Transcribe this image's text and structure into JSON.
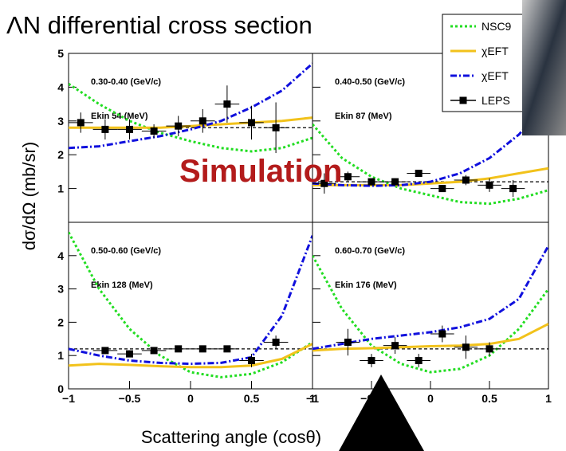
{
  "figure": {
    "title": "ΛN differential cross section",
    "y_label": "dσ/dΩ (mb/sr)",
    "x_label": "Scattering angle (cosθ)",
    "watermark": "Simulation"
  },
  "chart_data": [
    {
      "type": "line",
      "label": "0.30-0.40 (GeV/c)",
      "energy": "Ekin 54 (MeV)",
      "xlim": [
        -1,
        1
      ],
      "ylim": [
        0,
        5
      ],
      "yticks": [
        1,
        2,
        3,
        4,
        5
      ],
      "show_ytick_labels": true,
      "x": [
        -1,
        -0.75,
        -0.5,
        -0.25,
        0,
        0.25,
        0.5,
        0.75,
        1
      ],
      "flat_fit": 2.8,
      "series": [
        {
          "name": "NSC9",
          "color": "#22dd22",
          "style": "dotted",
          "values": [
            4.1,
            3.5,
            3.0,
            2.65,
            2.4,
            2.2,
            2.1,
            2.2,
            2.5
          ]
        },
        {
          "name": "χEFT",
          "color": "#f2c21b",
          "style": "solid",
          "values": [
            2.8,
            2.8,
            2.8,
            2.8,
            2.85,
            2.9,
            2.95,
            3.0,
            3.1
          ]
        },
        {
          "name": "χEFT",
          "color": "#1010dd",
          "style": "dashdot",
          "values": [
            2.2,
            2.25,
            2.4,
            2.55,
            2.75,
            3.0,
            3.4,
            3.9,
            4.7
          ]
        },
        {
          "name": "LEPS",
          "color": "#000000",
          "style": "markers",
          "x": [
            -0.9,
            -0.7,
            -0.5,
            -0.3,
            -0.1,
            0.1,
            0.3,
            0.5,
            0.7
          ],
          "x_error": 0.1,
          "values": [
            2.95,
            2.75,
            2.75,
            2.7,
            2.85,
            3.0,
            3.5,
            2.95,
            2.8
          ],
          "errors": [
            0.3,
            0.3,
            0.3,
            0.2,
            0.3,
            0.35,
            0.55,
            0.5,
            0.75
          ]
        }
      ]
    },
    {
      "type": "line",
      "label": "0.40-0.50 (GeV/c)",
      "energy": "Ekin 87 (MeV)",
      "xlim": [
        -1,
        1
      ],
      "ylim": [
        0,
        5
      ],
      "yticks": [
        1,
        2,
        3,
        4,
        5
      ],
      "show_ytick_labels": false,
      "x": [
        -1,
        -0.75,
        -0.5,
        -0.25,
        0,
        0.25,
        0.5,
        0.75,
        1
      ],
      "flat_fit": 1.2,
      "series": [
        {
          "color": "#22dd22",
          "style": "dotted",
          "values": [
            2.9,
            1.9,
            1.35,
            1.0,
            0.8,
            0.6,
            0.55,
            0.7,
            0.95
          ]
        },
        {
          "color": "#f2c21b",
          "style": "solid",
          "values": [
            1.1,
            1.1,
            1.1,
            1.1,
            1.15,
            1.2,
            1.3,
            1.45,
            1.6
          ]
        },
        {
          "color": "#1010dd",
          "style": "dashdot",
          "values": [
            1.15,
            1.1,
            1.08,
            1.1,
            1.2,
            1.45,
            1.9,
            2.6,
            3.6
          ]
        },
        {
          "color": "#000000",
          "style": "markers",
          "x": [
            -0.9,
            -0.7,
            -0.5,
            -0.3,
            -0.1,
            0.1,
            0.3,
            0.5,
            0.7
          ],
          "x_error": 0.1,
          "values": [
            1.15,
            1.35,
            1.2,
            1.2,
            1.45,
            1.0,
            1.25,
            1.1,
            1.0
          ],
          "errors": [
            0.3,
            0.15,
            0.1,
            0.1,
            0.1,
            0.1,
            0.15,
            0.2,
            0.25
          ]
        }
      ]
    },
    {
      "type": "line",
      "label": "0.50-0.60 (GeV/c)",
      "energy": "Ekin 128 (MeV)",
      "xlim": [
        -1,
        1
      ],
      "ylim": [
        0,
        5
      ],
      "yticks": [
        0,
        1,
        2,
        3,
        4
      ],
      "show_ytick_labels": true,
      "xticks": [
        {
          "value": -1,
          "label": "−1"
        },
        {
          "value": -0.5,
          "label": "−0.5"
        },
        0,
        0.5,
        1
      ],
      "x": [
        -1,
        -0.75,
        -0.5,
        -0.25,
        0,
        0.25,
        0.5,
        0.75,
        1
      ],
      "flat_fit": 1.2,
      "series": [
        {
          "color": "#22dd22",
          "style": "dotted",
          "values": [
            4.7,
            3.0,
            1.8,
            1.0,
            0.5,
            0.35,
            0.45,
            0.8,
            1.4
          ]
        },
        {
          "color": "#f2c21b",
          "style": "solid",
          "values": [
            0.7,
            0.75,
            0.72,
            0.68,
            0.65,
            0.65,
            0.7,
            0.9,
            1.35
          ]
        },
        {
          "color": "#1010dd",
          "style": "dashdot",
          "values": [
            1.2,
            1.0,
            0.85,
            0.78,
            0.75,
            0.78,
            0.95,
            2.2,
            4.6
          ]
        },
        {
          "color": "#000000",
          "style": "markers",
          "x": [
            -0.7,
            -0.5,
            -0.3,
            -0.1,
            0.1,
            0.3,
            0.5,
            0.7
          ],
          "x_error": 0.1,
          "values": [
            1.15,
            1.05,
            1.15,
            1.2,
            1.2,
            1.2,
            0.85,
            1.4
          ],
          "errors": [
            0.1,
            0.1,
            0.1,
            0.08,
            0.1,
            0.1,
            0.2,
            0.2
          ]
        }
      ]
    },
    {
      "type": "line",
      "label": "0.60-0.70 (GeV/c)",
      "energy": "Ekin 176 (MeV)",
      "xlim": [
        -1,
        1
      ],
      "ylim": [
        0,
        5
      ],
      "yticks": [
        0,
        1,
        2,
        3,
        4
      ],
      "show_ytick_labels": false,
      "xticks": [
        {
          "value": -1,
          "label": "−1"
        },
        {
          "value": -0.5,
          "label": "−0.5"
        },
        0,
        0.5,
        1
      ],
      "x": [
        -1,
        -0.75,
        -0.5,
        -0.25,
        0,
        0.25,
        0.5,
        0.75,
        1
      ],
      "flat_fit": 1.2,
      "series": [
        {
          "color": "#22dd22",
          "style": "dotted",
          "values": [
            4.0,
            2.4,
            1.3,
            0.75,
            0.5,
            0.6,
            1.0,
            1.8,
            3.0
          ]
        },
        {
          "color": "#f2c21b",
          "style": "solid",
          "values": [
            1.15,
            1.2,
            1.22,
            1.25,
            1.28,
            1.3,
            1.35,
            1.5,
            1.95
          ]
        },
        {
          "color": "#1010dd",
          "style": "dashdot",
          "values": [
            1.2,
            1.35,
            1.5,
            1.6,
            1.7,
            1.85,
            2.1,
            2.7,
            4.3
          ]
        },
        {
          "color": "#000000",
          "style": "markers",
          "x": [
            -0.7,
            -0.5,
            -0.3,
            -0.1,
            0.1,
            0.3,
            0.5
          ],
          "x_error": 0.1,
          "values": [
            1.4,
            0.85,
            1.3,
            0.85,
            1.65,
            1.25,
            1.2
          ],
          "errors": [
            0.4,
            0.2,
            0.25,
            0.2,
            0.25,
            0.35,
            0.2
          ]
        }
      ]
    }
  ]
}
